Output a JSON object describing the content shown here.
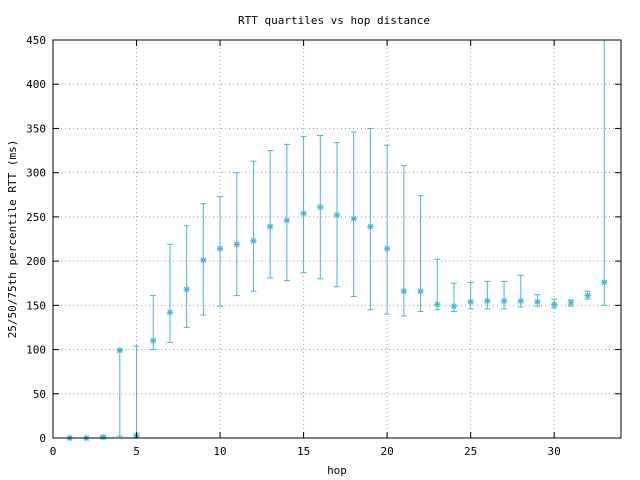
{
  "chart_data": {
    "type": "scatter",
    "title": "RTT quartiles vs hop distance",
    "xlabel": "hop",
    "ylabel": "25/50/75th percentile RTT (ms)",
    "xlim": [
      0,
      34
    ],
    "ylim": [
      0,
      450
    ],
    "xticks": [
      0,
      5,
      10,
      15,
      20,
      25,
      30
    ],
    "yticks": [
      0,
      50,
      100,
      150,
      200,
      250,
      300,
      350,
      400,
      450
    ],
    "grid": true,
    "series_color": "#49b5d6",
    "points": [
      {
        "x": 1,
        "median": 0,
        "q25": 0,
        "q75": 0
      },
      {
        "x": 2,
        "median": 0,
        "q25": 0,
        "q75": 0
      },
      {
        "x": 3,
        "median": 1,
        "q25": 0,
        "q75": 2
      },
      {
        "x": 4,
        "median": 99,
        "q25": 2,
        "q75": 100
      },
      {
        "x": 5,
        "median": 3,
        "q25": 1,
        "q75": 104
      },
      {
        "x": 6,
        "median": 110,
        "q25": 100,
        "q75": 161
      },
      {
        "x": 7,
        "median": 142,
        "q25": 108,
        "q75": 219
      },
      {
        "x": 8,
        "median": 168,
        "q25": 125,
        "q75": 240
      },
      {
        "x": 9,
        "median": 201,
        "q25": 139,
        "q75": 265
      },
      {
        "x": 10,
        "median": 214,
        "q25": 149,
        "q75": 273
      },
      {
        "x": 11,
        "median": 219,
        "q25": 161,
        "q75": 300
      },
      {
        "x": 12,
        "median": 223,
        "q25": 166,
        "q75": 313
      },
      {
        "x": 13,
        "median": 239,
        "q25": 181,
        "q75": 325
      },
      {
        "x": 14,
        "median": 246,
        "q25": 178,
        "q75": 332
      },
      {
        "x": 15,
        "median": 254,
        "q25": 187,
        "q75": 341
      },
      {
        "x": 16,
        "median": 261,
        "q25": 180,
        "q75": 342
      },
      {
        "x": 17,
        "median": 252,
        "q25": 171,
        "q75": 334
      },
      {
        "x": 18,
        "median": 248,
        "q25": 160,
        "q75": 346
      },
      {
        "x": 19,
        "median": 239,
        "q25": 145,
        "q75": 350
      },
      {
        "x": 20,
        "median": 214,
        "q25": 140,
        "q75": 331
      },
      {
        "x": 21,
        "median": 166,
        "q25": 138,
        "q75": 308
      },
      {
        "x": 22,
        "median": 166,
        "q25": 143,
        "q75": 274
      },
      {
        "x": 23,
        "median": 151,
        "q25": 145,
        "q75": 202
      },
      {
        "x": 24,
        "median": 149,
        "q25": 143,
        "q75": 175
      },
      {
        "x": 25,
        "median": 154,
        "q25": 146,
        "q75": 176
      },
      {
        "x": 26,
        "median": 155,
        "q25": 146,
        "q75": 177
      },
      {
        "x": 27,
        "median": 155,
        "q25": 146,
        "q75": 177
      },
      {
        "x": 28,
        "median": 155,
        "q25": 148,
        "q75": 184
      },
      {
        "x": 29,
        "median": 154,
        "q25": 149,
        "q75": 162
      },
      {
        "x": 30,
        "median": 151,
        "q25": 147,
        "q75": 157
      },
      {
        "x": 31,
        "median": 153,
        "q25": 149,
        "q75": 156
      },
      {
        "x": 32,
        "median": 161,
        "q25": 157,
        "q75": 166
      },
      {
        "x": 33,
        "median": 176,
        "q25": 150,
        "q75": 450
      }
    ]
  }
}
